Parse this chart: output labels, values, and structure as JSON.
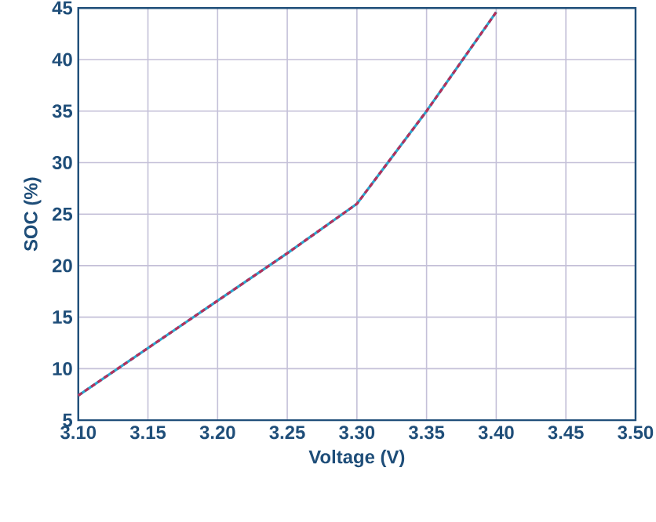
{
  "chart_data": {
    "type": "line",
    "xlabel": "Voltage (V)",
    "ylabel": "SOC (%)",
    "x": [
      3.1,
      3.15,
      3.2,
      3.25,
      3.3,
      3.35,
      3.4
    ],
    "series": [
      {
        "color": "#29a8d0",
        "line_style": "solid",
        "values": [
          7.4,
          12,
          16.6,
          21.2,
          26,
          35,
          44.6
        ]
      },
      {
        "color": "#b5305a",
        "line_style": "dashed",
        "values": [
          7.4,
          12,
          16.6,
          21.2,
          26,
          35,
          44.6
        ]
      }
    ],
    "xlim": [
      3.1,
      3.5
    ],
    "xticks": [
      {
        "value": 3.1,
        "label": "3.10"
      },
      {
        "value": 3.15,
        "label": "3.15"
      },
      {
        "value": 3.2,
        "label": "3.20"
      },
      {
        "value": 3.25,
        "label": "3.25"
      },
      {
        "value": 3.3,
        "label": "3.30"
      },
      {
        "value": 3.35,
        "label": "3.35"
      },
      {
        "value": 3.4,
        "label": "3.40"
      },
      {
        "value": 3.45,
        "label": "3.45"
      },
      {
        "value": 3.5,
        "label": "3.50"
      }
    ],
    "ylim": [
      5,
      45
    ],
    "yticks": [
      5,
      10,
      15,
      20,
      25,
      30,
      35,
      40,
      45
    ],
    "grid": true,
    "marker": "none"
  }
}
